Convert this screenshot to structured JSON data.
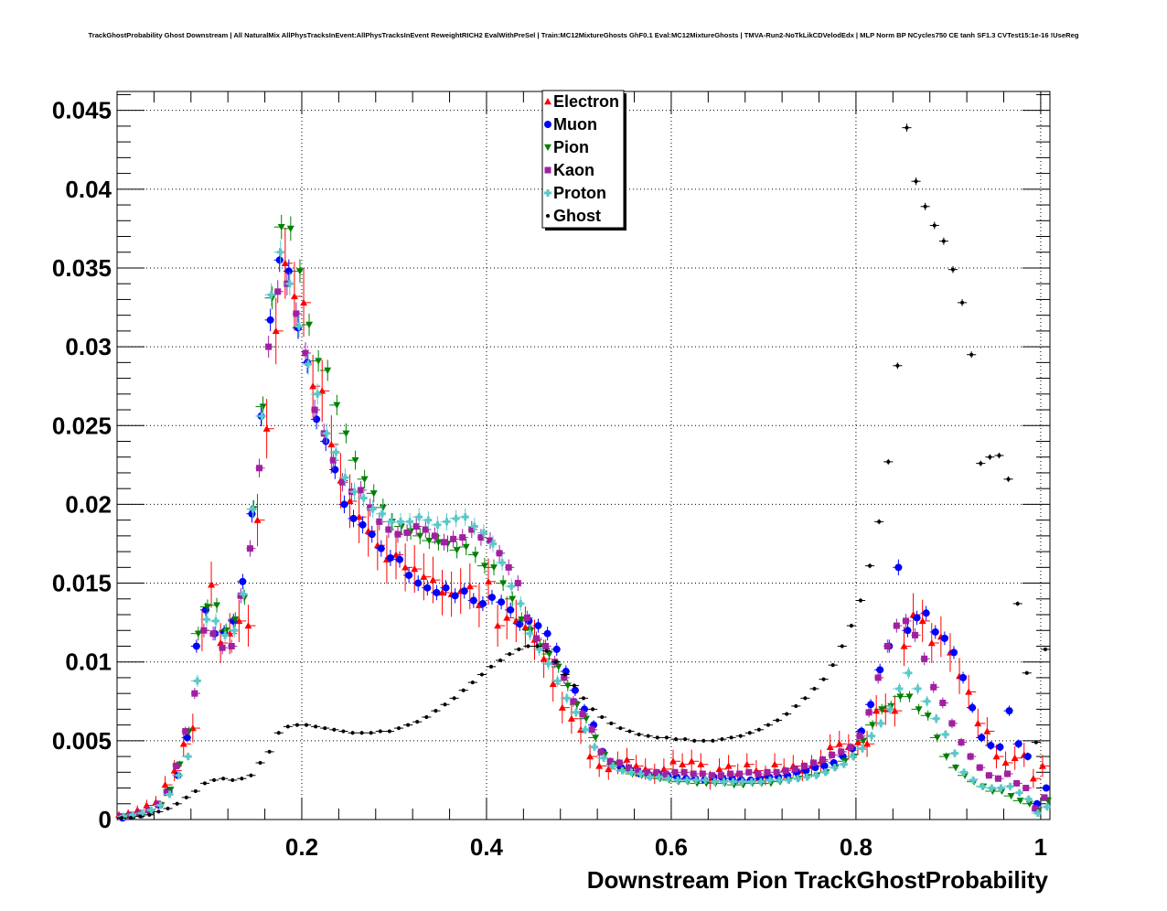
{
  "title": "TrackGhostProbability Ghost Downstream | All NaturalMix AllPhysTracksInEvent:AllPhysTracksInEvent ReweightRICH2 EvalWithPreSel | Train:MC12MixtureGhosts GhF0.1 Eval:MC12MixtureGhosts | TMVA-Run2-NoTkLikCDVelodEdx | MLP Norm BP NCycles750 CE tanh SF1.3 CVTest15:1e-16 !UseReg",
  "chart_data": {
    "type": "scatter",
    "title": "TrackGhostProbability Ghost Downstream | All NaturalMix AllPhysTracksInEvent:AllPhysTracksInEvent ReweightRICH2 EvalWithPreSel | Train:MC12MixtureGhosts GhF0.1 Eval:MC12MixtureGhosts | TMVA-Run2-NoTkLikCDVelodEdx | MLP Norm BP NCycles750 CE tanh SF1.3 CVTest15:1e-16 !UseReg",
    "xlabel": "Downstream Pion TrackGhostProbability",
    "ylabel": "",
    "xlim": [
      0,
      1.01
    ],
    "ylim": [
      0,
      0.0462
    ],
    "xticks": [
      0.2,
      0.4,
      0.6,
      0.8,
      1
    ],
    "xtick_labels": [
      "0.2",
      "0.4",
      "0.6",
      "0.8",
      "1"
    ],
    "yticks": [
      0,
      0.005,
      0.01,
      0.015,
      0.02,
      0.025,
      0.03,
      0.035,
      0.04,
      0.045
    ],
    "ytick_labels": [
      "0",
      "0.005",
      "0.01",
      "0.015",
      "0.02",
      "0.025",
      "0.03",
      "0.035",
      "0.04",
      "0.045"
    ],
    "grid": true,
    "legend_position": "top-center",
    "x": [
      0.005,
      0.015,
      0.025,
      0.035,
      0.045,
      0.055,
      0.065,
      0.075,
      0.085,
      0.095,
      0.105,
      0.115,
      0.125,
      0.135,
      0.145,
      0.155,
      0.165,
      0.175,
      0.185,
      0.195,
      0.205,
      0.215,
      0.225,
      0.235,
      0.245,
      0.255,
      0.265,
      0.275,
      0.285,
      0.295,
      0.305,
      0.315,
      0.325,
      0.335,
      0.345,
      0.355,
      0.365,
      0.375,
      0.385,
      0.395,
      0.405,
      0.415,
      0.425,
      0.435,
      0.445,
      0.455,
      0.465,
      0.475,
      0.485,
      0.495,
      0.505,
      0.515,
      0.525,
      0.535,
      0.545,
      0.555,
      0.565,
      0.575,
      0.585,
      0.595,
      0.605,
      0.615,
      0.625,
      0.635,
      0.645,
      0.655,
      0.665,
      0.675,
      0.685,
      0.695,
      0.705,
      0.715,
      0.725,
      0.735,
      0.745,
      0.755,
      0.765,
      0.775,
      0.785,
      0.795,
      0.805,
      0.815,
      0.825,
      0.835,
      0.845,
      0.855,
      0.865,
      0.875,
      0.885,
      0.895,
      0.905,
      0.915,
      0.925,
      0.935,
      0.945,
      0.955,
      0.965,
      0.975,
      0.985,
      0.995,
      1.005
    ],
    "series": [
      {
        "name": "Electron",
        "color": "#ff0000",
        "marker": "triangle-up",
        "values": [
          0.0003,
          0.0004,
          0.0006,
          0.0009,
          0.0011,
          0.0022,
          0.0031,
          0.0048,
          0.0058,
          0.012,
          0.0149,
          0.0112,
          0.0118,
          0.0126,
          0.0123,
          0.019,
          0.0248,
          0.031,
          0.0353,
          0.0332,
          0.0328,
          0.0275,
          0.0272,
          0.0238,
          0.0215,
          0.0202,
          0.0192,
          0.0183,
          0.0174,
          0.0165,
          0.0168,
          0.016,
          0.0159,
          0.0154,
          0.0152,
          0.0144,
          0.0143,
          0.0145,
          0.0148,
          0.0136,
          0.0151,
          0.0123,
          0.0128,
          0.0126,
          0.0122,
          0.0114,
          0.0102,
          0.0086,
          0.0071,
          0.0064,
          0.0057,
          0.004,
          0.0034,
          0.0032,
          0.0036,
          0.0038,
          0.0034,
          0.0032,
          0.0029,
          0.0032,
          0.0037,
          0.0035,
          0.0037,
          0.0035,
          0.0025,
          0.0032,
          0.0034,
          0.0029,
          0.0035,
          0.0031,
          0.0028,
          0.0035,
          0.0032,
          0.0034,
          0.0031,
          0.0034,
          0.0037,
          0.0046,
          0.0048,
          0.0046,
          0.0049,
          0.0048,
          0.0069,
          0.007,
          0.0069,
          0.011,
          0.013,
          0.0126,
          0.0112,
          0.0116,
          0.0106,
          0.0091,
          0.0081,
          0.0061,
          0.0056,
          0.004,
          0.0036,
          0.0039,
          0.0041,
          0.0026,
          0.0034
        ]
      },
      {
        "name": "Muon",
        "color": "#0000ff",
        "marker": "circle",
        "values": [
          0.0001,
          0.0002,
          0.0003,
          0.0005,
          0.0009,
          0.0018,
          0.0028,
          0.0052,
          0.011,
          0.0133,
          0.0118,
          0.0119,
          0.0126,
          0.0151,
          0.0194,
          0.0256,
          0.0317,
          0.0355,
          0.0348,
          0.0312,
          0.029,
          0.0254,
          0.024,
          0.0222,
          0.02,
          0.0191,
          0.0187,
          0.0181,
          0.0172,
          0.0166,
          0.0165,
          0.0155,
          0.015,
          0.0147,
          0.0144,
          0.0147,
          0.0142,
          0.0145,
          0.0139,
          0.0137,
          0.0141,
          0.0138,
          0.0133,
          0.0124,
          0.0126,
          0.0123,
          0.0118,
          0.0108,
          0.0094,
          0.0082,
          0.007,
          0.006,
          0.0043,
          0.0035,
          0.0033,
          0.0031,
          0.0029,
          0.0028,
          0.0029,
          0.0028,
          0.0027,
          0.0026,
          0.0026,
          0.0025,
          0.0027,
          0.0026,
          0.0026,
          0.0025,
          0.0025,
          0.0026,
          0.0027,
          0.0027,
          0.0028,
          0.003,
          0.0031,
          0.0033,
          0.0034,
          0.0036,
          0.004,
          0.0045,
          0.0056,
          0.0073,
          0.0095,
          0.011,
          0.016,
          0.012,
          0.0128,
          0.0131,
          0.0119,
          0.0115,
          0.0106,
          0.009,
          0.0071,
          0.0052,
          0.0047,
          0.0046,
          0.0069,
          0.0048,
          0.004,
          0.001,
          0.002
        ]
      },
      {
        "name": "Pion",
        "color": "#008000",
        "marker": "triangle-down",
        "values": [
          0.0002,
          0.0002,
          0.0003,
          0.0005,
          0.0009,
          0.0019,
          0.0035,
          0.0056,
          0.0118,
          0.0135,
          0.0136,
          0.012,
          0.0127,
          0.0141,
          0.0197,
          0.0262,
          0.0331,
          0.0376,
          0.0375,
          0.0348,
          0.0314,
          0.0291,
          0.0285,
          0.0263,
          0.0245,
          0.0228,
          0.0216,
          0.0207,
          0.0198,
          0.0189,
          0.0186,
          0.0183,
          0.018,
          0.0177,
          0.0176,
          0.0175,
          0.0171,
          0.0173,
          0.0168,
          0.0161,
          0.016,
          0.015,
          0.014,
          0.0127,
          0.012,
          0.011,
          0.0105,
          0.0097,
          0.0085,
          0.0073,
          0.0064,
          0.0052,
          0.0041,
          0.0035,
          0.0031,
          0.0029,
          0.0028,
          0.0027,
          0.0026,
          0.0025,
          0.0024,
          0.0024,
          0.0023,
          0.0023,
          0.0023,
          0.0023,
          0.0022,
          0.0022,
          0.0023,
          0.0023,
          0.0023,
          0.0024,
          0.0025,
          0.0026,
          0.0027,
          0.0028,
          0.003,
          0.0033,
          0.0037,
          0.004,
          0.005,
          0.006,
          0.007,
          0.0072,
          0.0078,
          0.0078,
          0.007,
          0.0066,
          0.0052,
          0.004,
          0.0033,
          0.0028,
          0.0024,
          0.0021,
          0.0018,
          0.0018,
          0.0015,
          0.0012,
          0.001,
          0.0006,
          0.0012
        ]
      },
      {
        "name": "Kaon",
        "color": "#a020a0",
        "marker": "square",
        "values": [
          0.0002,
          0.0003,
          0.0004,
          0.0006,
          0.001,
          0.0017,
          0.0034,
          0.0056,
          0.008,
          0.012,
          0.0118,
          0.0109,
          0.011,
          0.0142,
          0.0172,
          0.0223,
          0.03,
          0.0335,
          0.034,
          0.0321,
          0.0296,
          0.026,
          0.0245,
          0.0228,
          0.0214,
          0.0208,
          0.0209,
          0.0198,
          0.0189,
          0.0184,
          0.0181,
          0.0182,
          0.0186,
          0.0184,
          0.018,
          0.0176,
          0.0178,
          0.0179,
          0.0184,
          0.0179,
          0.0177,
          0.0169,
          0.016,
          0.015,
          0.0128,
          0.0115,
          0.011,
          0.01,
          0.009,
          0.0075,
          0.0067,
          0.0057,
          0.0043,
          0.0037,
          0.0036,
          0.0033,
          0.0031,
          0.003,
          0.003,
          0.0029,
          0.003,
          0.003,
          0.0029,
          0.0029,
          0.0028,
          0.0028,
          0.0029,
          0.0029,
          0.003,
          0.0029,
          0.003,
          0.003,
          0.0031,
          0.0032,
          0.0034,
          0.0036,
          0.0038,
          0.0041,
          0.0043,
          0.0046,
          0.0053,
          0.0068,
          0.009,
          0.011,
          0.0123,
          0.0126,
          0.0117,
          0.0102,
          0.0084,
          0.0074,
          0.0061,
          0.0049,
          0.004,
          0.0033,
          0.0028,
          0.0026,
          0.0029,
          0.0023,
          0.002,
          0.0007,
          0.0014
        ]
      },
      {
        "name": "Proton",
        "color": "#5bc8c8",
        "marker": "plus",
        "values": [
          0.0002,
          0.0003,
          0.0004,
          0.0006,
          0.0009,
          0.0016,
          0.0028,
          0.004,
          0.0088,
          0.0127,
          0.0126,
          0.0117,
          0.012,
          0.0143,
          0.0197,
          0.0256,
          0.0333,
          0.036,
          0.034,
          0.0313,
          0.0289,
          0.027,
          0.0245,
          0.0233,
          0.0217,
          0.0208,
          0.0204,
          0.0197,
          0.0194,
          0.0189,
          0.0189,
          0.0189,
          0.0192,
          0.019,
          0.0187,
          0.0189,
          0.0191,
          0.0192,
          0.0186,
          0.0182,
          0.0175,
          0.0163,
          0.0148,
          0.0137,
          0.0118,
          0.0108,
          0.0099,
          0.0088,
          0.0077,
          0.0068,
          0.0057,
          0.0046,
          0.0039,
          0.0034,
          0.0031,
          0.003,
          0.0029,
          0.0027,
          0.0027,
          0.0026,
          0.0025,
          0.0025,
          0.0025,
          0.0025,
          0.0024,
          0.0024,
          0.0024,
          0.0024,
          0.0024,
          0.0024,
          0.0025,
          0.0025,
          0.0025,
          0.0026,
          0.0027,
          0.0028,
          0.003,
          0.0033,
          0.0035,
          0.004,
          0.0045,
          0.0053,
          0.0061,
          0.007,
          0.0083,
          0.0093,
          0.0083,
          0.0075,
          0.0064,
          0.0054,
          0.0042,
          0.003,
          0.0025,
          0.0021,
          0.002,
          0.002,
          0.0021,
          0.0017,
          0.0013,
          0.0004,
          0.0008
        ]
      },
      {
        "name": "Ghost",
        "color": "#000000",
        "marker": "dot",
        "values": [
          0.0001,
          0.0001,
          0.0002,
          0.0003,
          0.0005,
          0.0007,
          0.001,
          0.0014,
          0.0018,
          0.0023,
          0.0025,
          0.0026,
          0.0025,
          0.0026,
          0.0028,
          0.0036,
          0.0043,
          0.0055,
          0.0059,
          0.006,
          0.006,
          0.0059,
          0.0058,
          0.0057,
          0.0056,
          0.0055,
          0.0055,
          0.0055,
          0.0056,
          0.0056,
          0.0058,
          0.006,
          0.0062,
          0.0065,
          0.0069,
          0.0073,
          0.0077,
          0.0082,
          0.0087,
          0.0092,
          0.0097,
          0.0101,
          0.0105,
          0.0108,
          0.011,
          0.011,
          0.0107,
          0.01,
          0.0092,
          0.0085,
          0.0077,
          0.007,
          0.0065,
          0.0061,
          0.0058,
          0.0056,
          0.0054,
          0.0053,
          0.0052,
          0.0052,
          0.0051,
          0.0051,
          0.005,
          0.005,
          0.005,
          0.0051,
          0.0052,
          0.0053,
          0.0055,
          0.0057,
          0.006,
          0.0063,
          0.0067,
          0.0072,
          0.0077,
          0.0083,
          0.0089,
          0.0098,
          0.011,
          0.0123,
          0.0139,
          0.0161,
          0.0189,
          0.0227,
          0.0288,
          0.0439,
          0.0405,
          0.0389,
          0.0377,
          0.0367,
          0.0349,
          0.0328,
          0.0295,
          0.0226,
          0.023,
          0.0231,
          0.0216,
          0.0137,
          0.0093,
          0.0049,
          0.0108
        ]
      }
    ]
  }
}
